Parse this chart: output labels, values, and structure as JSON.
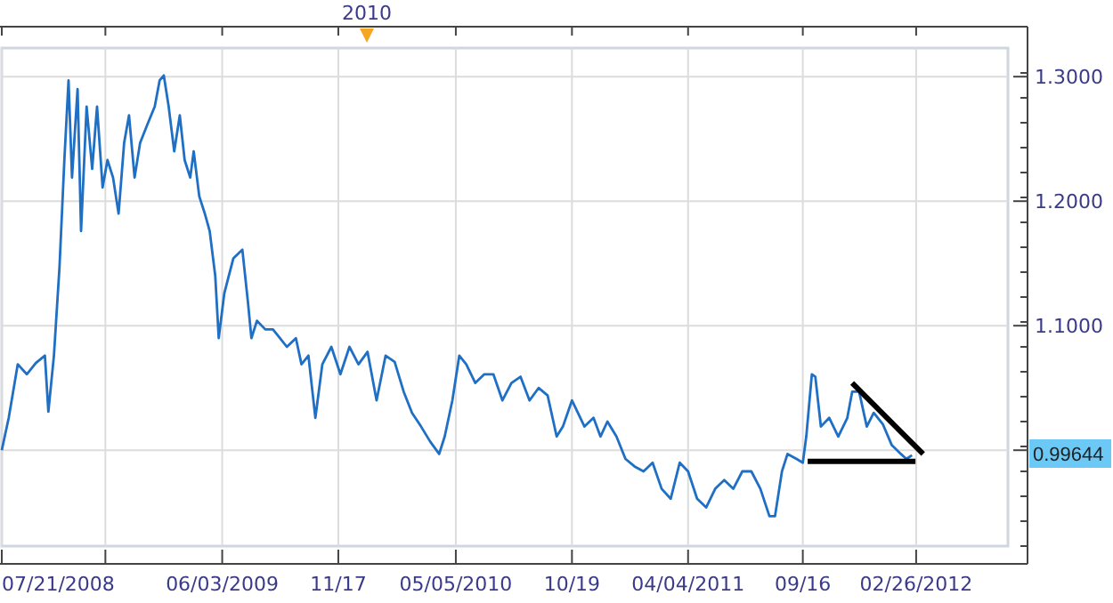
{
  "chart_data": {
    "type": "line",
    "grid": true,
    "marker": "none",
    "line_style": "solid",
    "xlim": [
      "2008-07-21",
      "2012-07-07"
    ],
    "xticks": [
      {
        "value": "2008-07-21",
        "label": "07/21/2008"
      },
      {
        "value": "2008-12-17",
        "label": null
      },
      {
        "value": "2009-06-03",
        "label": "06/03/2009"
      },
      {
        "value": "2009-11-17",
        "label": "11/17"
      },
      {
        "value": "2010-05-05",
        "label": "05/05/2010"
      },
      {
        "value": "2010-10-19",
        "label": "10/19"
      },
      {
        "value": "2011-04-04",
        "label": "04/04/2011"
      },
      {
        "value": "2011-09-16",
        "label": "09/16"
      },
      {
        "value": "2012-02-26",
        "label": "02/26/2012"
      }
    ],
    "ylim": [
      0.923,
      1.323
    ],
    "yticks": [
      {
        "value": 1.0,
        "label": null
      },
      {
        "value": 1.1,
        "label": "1.1000"
      },
      {
        "value": 1.2,
        "label": "1.2000"
      },
      {
        "value": 1.3,
        "label": "1.3000"
      }
    ],
    "annotations": [
      "2010",
      "0.99644"
    ],
    "series": [
      {
        "color": "#1f6fc5",
        "x": [
          "2008-07-21",
          "2008-07-31",
          "2008-08-13",
          "2008-08-26",
          "2008-09-08",
          "2008-09-21",
          "2008-09-26",
          "2008-10-04",
          "2008-10-12",
          "2008-10-19",
          "2008-10-25",
          "2008-10-30",
          "2008-11-07",
          "2008-11-12",
          "2008-11-20",
          "2008-11-28",
          "2008-12-05",
          "2008-12-13",
          "2008-12-20",
          "2008-12-28",
          "2009-01-05",
          "2009-01-13",
          "2009-01-20",
          "2009-01-28",
          "2009-02-05",
          "2009-02-15",
          "2009-02-26",
          "2009-03-05",
          "2009-03-11",
          "2009-03-18",
          "2009-03-26",
          "2009-04-03",
          "2009-04-10",
          "2009-04-18",
          "2009-04-23",
          "2009-05-01",
          "2009-05-09",
          "2009-05-16",
          "2009-05-24",
          "2009-05-29",
          "2009-06-06",
          "2009-06-19",
          "2009-07-02",
          "2009-07-10",
          "2009-07-15",
          "2009-07-23",
          "2009-08-04",
          "2009-08-15",
          "2009-08-25",
          "2009-09-04",
          "2009-09-17",
          "2009-09-25",
          "2009-10-05",
          "2009-10-15",
          "2009-10-25",
          "2009-11-07",
          "2009-11-20",
          "2009-12-03",
          "2009-12-16",
          "2009-12-29",
          "2010-01-11",
          "2010-01-24",
          "2010-02-06",
          "2010-02-19",
          "2010-03-03",
          "2010-03-16",
          "2010-03-29",
          "2010-04-11",
          "2010-04-19",
          "2010-04-30",
          "2010-05-10",
          "2010-05-20",
          "2010-06-02",
          "2010-06-15",
          "2010-06-28",
          "2010-07-11",
          "2010-07-24",
          "2010-08-06",
          "2010-08-19",
          "2010-09-01",
          "2010-09-14",
          "2010-09-27",
          "2010-10-06",
          "2010-10-19",
          "2010-11-06",
          "2010-11-19",
          "2010-11-29",
          "2010-12-09",
          "2010-12-22",
          "2011-01-04",
          "2011-01-17",
          "2011-01-30",
          "2011-02-12",
          "2011-02-25",
          "2011-03-10",
          "2011-03-23",
          "2011-04-04",
          "2011-04-17",
          "2011-04-30",
          "2011-05-13",
          "2011-05-26",
          "2011-06-08",
          "2011-06-21",
          "2011-07-04",
          "2011-07-17",
          "2011-07-30",
          "2011-08-07",
          "2011-08-17",
          "2011-08-25",
          "2011-09-07",
          "2011-09-16",
          "2011-09-21",
          "2011-09-29",
          "2011-10-04",
          "2011-10-12",
          "2011-10-24",
          "2011-11-06",
          "2011-11-19",
          "2011-11-26",
          "2011-12-06",
          "2011-12-17",
          "2011-12-27",
          "2012-01-09",
          "2012-01-22",
          "2012-02-04",
          "2012-02-12",
          "2012-02-20"
        ],
        "values": [
          1.0,
          1.026,
          1.069,
          1.061,
          1.07,
          1.076,
          1.031,
          1.076,
          1.147,
          1.233,
          1.297,
          1.219,
          1.29,
          1.176,
          1.276,
          1.226,
          1.276,
          1.211,
          1.233,
          1.219,
          1.19,
          1.247,
          1.269,
          1.219,
          1.247,
          1.261,
          1.276,
          1.297,
          1.301,
          1.276,
          1.24,
          1.269,
          1.233,
          1.219,
          1.24,
          1.204,
          1.19,
          1.176,
          1.14,
          1.09,
          1.126,
          1.154,
          1.161,
          1.119,
          1.09,
          1.104,
          1.097,
          1.097,
          1.09,
          1.083,
          1.09,
          1.069,
          1.076,
          1.026,
          1.069,
          1.083,
          1.061,
          1.083,
          1.069,
          1.079,
          1.04,
          1.076,
          1.071,
          1.047,
          1.03,
          1.019,
          1.007,
          0.997,
          1.011,
          1.04,
          1.076,
          1.069,
          1.054,
          1.061,
          1.061,
          1.04,
          1.054,
          1.059,
          1.04,
          1.05,
          1.044,
          1.011,
          1.019,
          1.04,
          1.019,
          1.026,
          1.011,
          1.023,
          1.011,
          0.993,
          0.987,
          0.983,
          0.99,
          0.969,
          0.961,
          0.99,
          0.983,
          0.961,
          0.954,
          0.969,
          0.976,
          0.969,
          0.983,
          0.983,
          0.969,
          0.947,
          0.947,
          0.983,
          0.997,
          0.993,
          0.99,
          1.011,
          1.061,
          1.059,
          1.019,
          1.026,
          1.011,
          1.026,
          1.047,
          1.047,
          1.019,
          1.03,
          1.021,
          1.004,
          0.997,
          0.993,
          0.996
        ]
      },
      {
        "type": "line",
        "color": "#000000",
        "x": [
          "2011-09-23",
          "2012-02-25"
        ],
        "values": [
          0.991,
          0.991
        ]
      },
      {
        "type": "line",
        "color": "#000000",
        "x": [
          "2011-11-26",
          "2012-03-07"
        ],
        "values": [
          1.054,
          0.997
        ]
      }
    ]
  }
}
